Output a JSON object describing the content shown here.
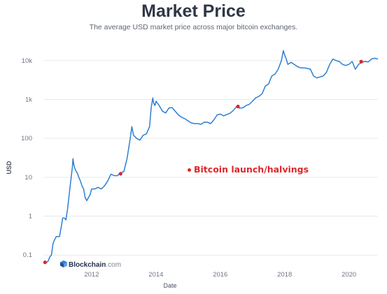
{
  "header": {
    "title": "Market Price",
    "subtitle": "The average USD market price across major bitcoin exchanges."
  },
  "annotation": {
    "text": "Bitcoin launch/halvings",
    "color": "#e0252a"
  },
  "brand": {
    "name": "Blockchain",
    "suffix": ".com",
    "icon": "blockchain-logo-icon"
  },
  "colors": {
    "line": "#2f7fd1",
    "marker": "#e0252a",
    "grid": "#e6e9ee",
    "axis_text": "#6f7685"
  },
  "chart_data": {
    "type": "line",
    "title": "Market Price",
    "xlabel": "Date",
    "ylabel": "USD",
    "y_scale": "log",
    "xlim": [
      2010.5,
      2020.9
    ],
    "ylim": [
      0.05,
      20000
    ],
    "grid": true,
    "x_ticks": [
      2012,
      2014,
      2016,
      2018,
      2020
    ],
    "x_tick_labels": [
      "2012",
      "2014",
      "2016",
      "2018",
      "2020"
    ],
    "y_ticks": [
      0.1,
      1,
      10,
      100,
      1000,
      10000
    ],
    "y_tick_labels": [
      "0.1",
      "1",
      "10",
      "100",
      "1k",
      "10k"
    ],
    "series": [
      {
        "x": [
          2010.55,
          2010.6,
          2010.65,
          2010.7,
          2010.75,
          2010.8,
          2010.85,
          2010.9,
          2010.95,
          2011.0,
          2011.05,
          2011.1,
          2011.15,
          2011.2,
          2011.25,
          2011.3,
          2011.35,
          2011.4,
          2011.42,
          2011.45,
          2011.5,
          2011.55,
          2011.6,
          2011.65,
          2011.7,
          2011.75,
          2011.8,
          2011.85,
          2011.9,
          2011.95,
          2012.0,
          2012.1,
          2012.2,
          2012.3,
          2012.4,
          2012.5,
          2012.6,
          2012.7,
          2012.8,
          2012.9,
          2013.0,
          2013.1,
          2013.2,
          2013.25,
          2013.3,
          2013.35,
          2013.4,
          2013.5,
          2013.6,
          2013.7,
          2013.8,
          2013.85,
          2013.9,
          2013.93,
          2013.97,
          2014.0,
          2014.1,
          2014.2,
          2014.3,
          2014.4,
          2014.5,
          2014.6,
          2014.7,
          2014.8,
          2014.9,
          2015.0,
          2015.1,
          2015.2,
          2015.3,
          2015.4,
          2015.5,
          2015.6,
          2015.7,
          2015.8,
          2015.9,
          2016.0,
          2016.1,
          2016.2,
          2016.3,
          2016.4,
          2016.5,
          2016.6,
          2016.7,
          2016.8,
          2016.9,
          2017.0,
          2017.1,
          2017.2,
          2017.3,
          2017.4,
          2017.5,
          2017.6,
          2017.7,
          2017.8,
          2017.9,
          2017.96,
          2018.0,
          2018.05,
          2018.1,
          2018.2,
          2018.3,
          2018.4,
          2018.5,
          2018.6,
          2018.7,
          2018.8,
          2018.9,
          2019.0,
          2019.1,
          2019.2,
          2019.3,
          2019.4,
          2019.5,
          2019.6,
          2019.7,
          2019.8,
          2019.9,
          2020.0,
          2020.1,
          2020.2,
          2020.3,
          2020.4,
          2020.5,
          2020.6,
          2020.7,
          2020.8,
          2020.9
        ],
        "y": [
          0.06,
          0.065,
          0.07,
          0.09,
          0.1,
          0.2,
          0.25,
          0.3,
          0.3,
          0.3,
          0.5,
          0.9,
          0.9,
          0.8,
          1.5,
          3.5,
          8,
          18,
          30,
          20,
          15,
          13,
          10,
          8,
          6,
          5,
          3,
          2.5,
          3,
          3.5,
          5,
          5,
          5.5,
          5,
          6,
          8,
          12,
          11,
          11,
          13,
          14,
          30,
          100,
          200,
          120,
          110,
          100,
          90,
          120,
          130,
          200,
          600,
          1100,
          800,
          700,
          900,
          700,
          500,
          450,
          600,
          620,
          500,
          400,
          350,
          320,
          280,
          250,
          240,
          240,
          230,
          260,
          260,
          240,
          300,
          400,
          420,
          380,
          410,
          440,
          520,
          650,
          600,
          610,
          700,
          750,
          900,
          1100,
          1200,
          1400,
          2200,
          2500,
          4000,
          4500,
          6000,
          10000,
          18000,
          14000,
          11000,
          8000,
          9000,
          8000,
          7000,
          6500,
          6500,
          6300,
          6000,
          4000,
          3600,
          3800,
          4000,
          5000,
          8000,
          11000,
          10000,
          9500,
          8000,
          7500,
          8000,
          9500,
          6000,
          8000,
          9000,
          9500,
          9200,
          11000,
          11500,
          11000
        ]
      }
    ],
    "markers": [
      {
        "x": 2010.55,
        "y": 0.065
      },
      {
        "x": 2012.9,
        "y": 12.3
      },
      {
        "x": 2016.55,
        "y": 660
      },
      {
        "x": 2020.38,
        "y": 9400
      }
    ]
  }
}
